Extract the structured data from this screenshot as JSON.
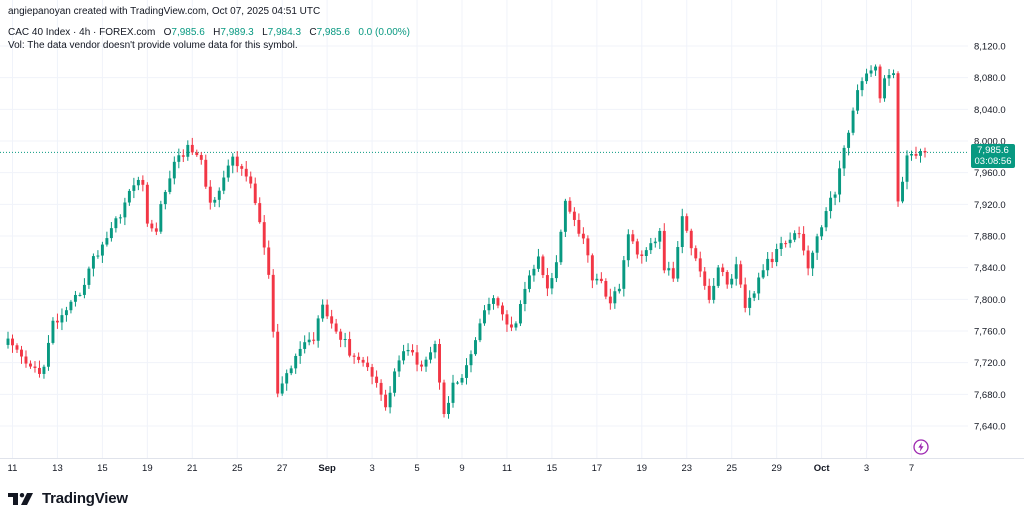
{
  "credit": "angiepanoyan created with TradingView.com, Oct 07, 2025 04:51 UTC",
  "legend": {
    "symbol": "CAC 40 Index · 4h · FOREX.com",
    "open_label": "O",
    "open": "7,985.6",
    "high_label": "H",
    "high": "7,989.3",
    "low_label": "L",
    "low": "7,984.3",
    "close_label": "C",
    "close": "7,985.6",
    "change": "0.0 (0.00%)",
    "volume_note": "Vol: The data vendor doesn't provide volume data for this symbol."
  },
  "price_badge": {
    "price": "7,985.6",
    "countdown": "03:08:56"
  },
  "brand": {
    "name": "TradingView"
  },
  "icons": {
    "logo": "tradingview-logo-icon",
    "alert": "lightning-bolt-icon"
  },
  "colors": {
    "up": "#089981",
    "down": "#F23645",
    "grid": "#F0F3FA",
    "text": "#131722",
    "accent": "#9C27B0"
  },
  "chart_data": {
    "type": "candlestick",
    "title": "CAC 40 Index · 4h · FOREX.com",
    "ylim": [
      7600,
      8140
    ],
    "y_ticks": [
      "8,120.0",
      "8,080.0",
      "8,040.0",
      "8,000.0",
      "7,960.0",
      "7,920.0",
      "7,880.0",
      "7,840.0",
      "7,800.0",
      "7,760.0",
      "7,720.0",
      "7,680.0",
      "7,640.0"
    ],
    "y_tick_values": [
      8120,
      8080,
      8040,
      8000,
      7960,
      7920,
      7880,
      7840,
      7800,
      7760,
      7720,
      7680,
      7640
    ],
    "x_tick_labels": [
      "11",
      "13",
      "15",
      "19",
      "21",
      "25",
      "27",
      "Sep",
      "3",
      "5",
      "9",
      "11",
      "15",
      "17",
      "19",
      "23",
      "25",
      "29",
      "Oct",
      "3",
      "7"
    ],
    "x_tick_index": [
      1,
      11,
      21,
      31,
      41,
      51,
      61,
      71,
      81,
      91,
      101,
      111,
      121,
      131,
      141,
      151,
      161,
      171,
      181,
      191,
      201
    ],
    "last_price": 7985.6,
    "anchors": [
      [
        0,
        7745
      ],
      [
        2,
        7730
      ],
      [
        5,
        7712
      ],
      [
        8,
        7712
      ],
      [
        10,
        7770
      ],
      [
        13,
        7780
      ],
      [
        16,
        7810
      ],
      [
        19,
        7850
      ],
      [
        22,
        7880
      ],
      [
        25,
        7910
      ],
      [
        28,
        7945
      ],
      [
        30,
        7950
      ],
      [
        31,
        7890
      ],
      [
        33,
        7890
      ],
      [
        35,
        7940
      ],
      [
        38,
        7985
      ],
      [
        41,
        7990
      ],
      [
        43,
        7970
      ],
      [
        45,
        7920
      ],
      [
        48,
        7955
      ],
      [
        50,
        7975
      ],
      [
        53,
        7960
      ],
      [
        56,
        7900
      ],
      [
        58,
        7830
      ],
      [
        60,
        7680
      ],
      [
        62,
        7700
      ],
      [
        65,
        7740
      ],
      [
        68,
        7752
      ],
      [
        70,
        7800
      ],
      [
        72,
        7770
      ],
      [
        74,
        7752
      ],
      [
        76,
        7735
      ],
      [
        79,
        7720
      ],
      [
        82,
        7700
      ],
      [
        84,
        7660
      ],
      [
        86,
        7710
      ],
      [
        88,
        7735
      ],
      [
        92,
        7720
      ],
      [
        95,
        7740
      ],
      [
        97,
        7660
      ],
      [
        99,
        7690
      ],
      [
        101,
        7700
      ],
      [
        103,
        7725
      ],
      [
        105,
        7770
      ],
      [
        108,
        7805
      ],
      [
        110,
        7775
      ],
      [
        112,
        7760
      ],
      [
        114,
        7790
      ],
      [
        116,
        7830
      ],
      [
        118,
        7850
      ],
      [
        120,
        7810
      ],
      [
        122,
        7845
      ],
      [
        124,
        7930
      ],
      [
        126,
        7900
      ],
      [
        128,
        7875
      ],
      [
        130,
        7830
      ],
      [
        132,
        7825
      ],
      [
        134,
        7790
      ],
      [
        136,
        7820
      ],
      [
        138,
        7880
      ],
      [
        140,
        7855
      ],
      [
        142,
        7865
      ],
      [
        144,
        7870
      ],
      [
        145,
        7885
      ],
      [
        146,
        7840
      ],
      [
        148,
        7830
      ],
      [
        150,
        7900
      ],
      [
        152,
        7870
      ],
      [
        154,
        7840
      ],
      [
        156,
        7800
      ],
      [
        158,
        7840
      ],
      [
        160,
        7820
      ],
      [
        162,
        7840
      ],
      [
        164,
        7785
      ],
      [
        166,
        7810
      ],
      [
        168,
        7840
      ],
      [
        170,
        7850
      ],
      [
        172,
        7875
      ],
      [
        174,
        7880
      ],
      [
        176,
        7885
      ],
      [
        178,
        7840
      ],
      [
        180,
        7875
      ],
      [
        182,
        7915
      ],
      [
        184,
        7935
      ],
      [
        186,
        7990
      ],
      [
        188,
        8040
      ],
      [
        190,
        8080
      ],
      [
        192,
        8085
      ],
      [
        193,
        8090
      ],
      [
        194,
        8060
      ],
      [
        196,
        8085
      ],
      [
        197,
        8080
      ],
      [
        198,
        7920
      ],
      [
        200,
        7980
      ],
      [
        202,
        7985
      ],
      [
        204,
        7985.6
      ]
    ]
  }
}
